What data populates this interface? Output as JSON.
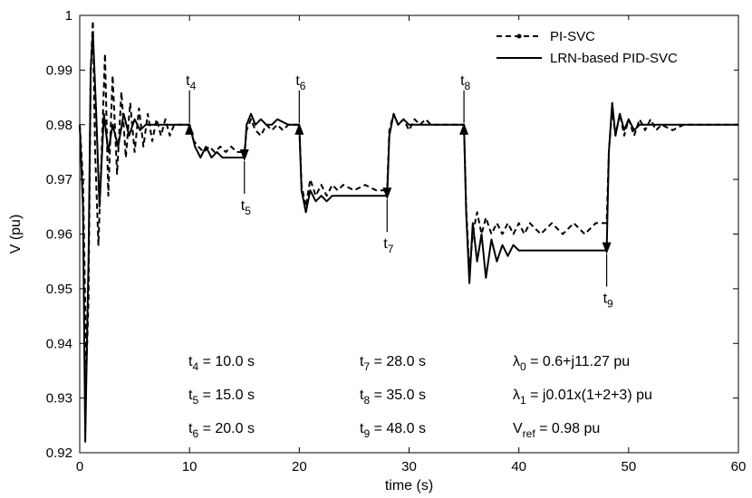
{
  "chart_data": {
    "type": "line",
    "xlabel": "time (s)",
    "ylabel": "V (pu)",
    "xlim": [
      0,
      60
    ],
    "ylim": [
      0.92,
      1.0
    ],
    "x_ticks": [
      "0",
      "10",
      "20",
      "30",
      "40",
      "50",
      "60"
    ],
    "y_ticks": [
      "0.92",
      "0.93",
      "0.94",
      "0.95",
      "0.96",
      "0.97",
      "0.98",
      "0.99",
      "1"
    ],
    "grid": false,
    "legend_position": "top-right",
    "series": [
      {
        "name": "PI-SVC",
        "style": "dashed",
        "x": [
          0,
          0.3,
          0.6,
          0.8,
          1.0,
          1.2,
          1.4,
          1.7,
          2.0,
          2.3,
          2.6,
          3.0,
          3.4,
          3.8,
          4.2,
          4.6,
          5.0,
          5.4,
          5.8,
          6.2,
          6.6,
          7.0,
          7.4,
          7.8,
          8.2,
          8.6,
          9.0,
          9.5,
          10.0,
          10.4,
          10.8,
          11.3,
          11.8,
          12.3,
          12.8,
          13.3,
          13.8,
          14.3,
          15.0,
          15.2,
          15.6,
          16.0,
          16.5,
          17.0,
          17.5,
          18.0,
          18.5,
          19.0,
          19.5,
          20.0,
          20.2,
          20.6,
          21.0,
          21.5,
          22.0,
          22.5,
          23.0,
          23.5,
          24.0,
          25.0,
          26.0,
          27.0,
          28.0,
          28.2,
          28.6,
          29.0,
          29.5,
          30.0,
          30.5,
          31.0,
          31.5,
          32.0,
          33.0,
          34.0,
          35.0,
          35.2,
          35.5,
          35.8,
          36.2,
          36.6,
          37.0,
          37.5,
          38.0,
          38.5,
          39.0,
          39.5,
          40.0,
          40.5,
          41.0,
          42.0,
          43.0,
          44.0,
          45.0,
          46.0,
          47.0,
          48.0,
          48.2,
          48.5,
          48.8,
          49.2,
          49.6,
          50.0,
          50.5,
          51.0,
          51.5,
          52.0,
          52.5,
          53.0,
          54.0,
          55.0,
          56.0,
          57.0,
          58.0,
          60.0
        ],
        "y": [
          0.98,
          0.97,
          0.935,
          0.948,
          0.99,
          0.999,
          0.975,
          0.958,
          0.975,
          0.993,
          0.967,
          0.989,
          0.971,
          0.986,
          0.974,
          0.984,
          0.975,
          0.983,
          0.976,
          0.982,
          0.977,
          0.981,
          0.978,
          0.981,
          0.978,
          0.98,
          0.98,
          0.98,
          0.98,
          0.977,
          0.976,
          0.975,
          0.976,
          0.975,
          0.976,
          0.975,
          0.976,
          0.975,
          0.975,
          0.979,
          0.981,
          0.979,
          0.978,
          0.98,
          0.979,
          0.98,
          0.979,
          0.98,
          0.98,
          0.98,
          0.969,
          0.965,
          0.97,
          0.967,
          0.969,
          0.967,
          0.969,
          0.968,
          0.969,
          0.968,
          0.969,
          0.968,
          0.968,
          0.979,
          0.982,
          0.98,
          0.981,
          0.979,
          0.981,
          0.98,
          0.981,
          0.98,
          0.98,
          0.98,
          0.98,
          0.965,
          0.953,
          0.96,
          0.964,
          0.96,
          0.963,
          0.96,
          0.962,
          0.96,
          0.962,
          0.96,
          0.962,
          0.96,
          0.962,
          0.96,
          0.962,
          0.96,
          0.962,
          0.96,
          0.962,
          0.962,
          0.975,
          0.983,
          0.978,
          0.982,
          0.978,
          0.981,
          0.978,
          0.981,
          0.979,
          0.981,
          0.979,
          0.98,
          0.979,
          0.98,
          0.98,
          0.98,
          0.98,
          0.98
        ]
      },
      {
        "name": "LRN-based PID-SVC",
        "style": "solid",
        "x": [
          0,
          0.3,
          0.5,
          0.7,
          0.8,
          1.0,
          1.2,
          1.5,
          1.8,
          2.2,
          2.6,
          3.0,
          3.5,
          4.0,
          4.5,
          5.0,
          5.5,
          6.0,
          7.0,
          8.0,
          9.0,
          10.0,
          10.5,
          11.0,
          11.5,
          12.0,
          12.5,
          13.0,
          14.0,
          15.0,
          15.2,
          15.6,
          16.0,
          16.5,
          17.0,
          17.5,
          18.0,
          19.0,
          20.0,
          20.2,
          20.6,
          21.0,
          21.5,
          22.0,
          22.5,
          23.0,
          24.0,
          25.0,
          26.0,
          27.0,
          28.0,
          28.2,
          28.6,
          29.0,
          29.5,
          30.0,
          30.5,
          31.0,
          32.0,
          33.0,
          34.0,
          35.0,
          35.2,
          35.5,
          35.8,
          36.2,
          36.6,
          37.0,
          37.5,
          38.0,
          38.5,
          39.0,
          39.5,
          40.0,
          41.0,
          42.0,
          43.0,
          44.0,
          45.0,
          46.0,
          47.0,
          48.0,
          48.2,
          48.5,
          48.8,
          49.2,
          49.6,
          50.0,
          50.5,
          51.0,
          52.0,
          53.0,
          54.0,
          56.0,
          58.0,
          60.0
        ],
        "y": [
          0.98,
          0.965,
          0.922,
          0.945,
          0.955,
          0.99,
          0.997,
          0.982,
          0.965,
          0.982,
          0.975,
          0.98,
          0.976,
          0.982,
          0.978,
          0.981,
          0.979,
          0.98,
          0.98,
          0.98,
          0.98,
          0.98,
          0.976,
          0.974,
          0.976,
          0.974,
          0.975,
          0.974,
          0.974,
          0.974,
          0.98,
          0.982,
          0.98,
          0.981,
          0.98,
          0.98,
          0.981,
          0.98,
          0.98,
          0.968,
          0.964,
          0.968,
          0.966,
          0.967,
          0.966,
          0.967,
          0.967,
          0.967,
          0.967,
          0.967,
          0.967,
          0.978,
          0.982,
          0.98,
          0.981,
          0.98,
          0.98,
          0.98,
          0.98,
          0.98,
          0.98,
          0.98,
          0.964,
          0.951,
          0.962,
          0.955,
          0.96,
          0.952,
          0.959,
          0.955,
          0.958,
          0.956,
          0.958,
          0.957,
          0.957,
          0.957,
          0.957,
          0.957,
          0.957,
          0.957,
          0.957,
          0.957,
          0.975,
          0.984,
          0.978,
          0.982,
          0.979,
          0.981,
          0.979,
          0.98,
          0.98,
          0.98,
          0.98,
          0.98,
          0.98,
          0.98
        ]
      }
    ],
    "markers": [
      {
        "main": "t",
        "sub": "4",
        "time": 10.0,
        "value": 0.98,
        "dir": "down"
      },
      {
        "main": "t",
        "sub": "5",
        "time": 15.0,
        "value": 0.974,
        "dir": "up"
      },
      {
        "main": "t",
        "sub": "6",
        "time": 20.0,
        "value": 0.98,
        "dir": "down"
      },
      {
        "main": "t",
        "sub": "7",
        "time": 28.0,
        "value": 0.967,
        "dir": "up"
      },
      {
        "main": "t",
        "sub": "8",
        "time": 35.0,
        "value": 0.98,
        "dir": "down"
      },
      {
        "main": "t",
        "sub": "9",
        "time": 48.0,
        "value": 0.957,
        "dir": "up"
      }
    ],
    "annotations": [
      {
        "main": "t",
        "sub": "4",
        "rest": " = 10.0 s"
      },
      {
        "main": "t",
        "sub": "5",
        "rest": " = 15.0 s"
      },
      {
        "main": "t",
        "sub": "6",
        "rest": " = 20.0 s"
      },
      {
        "main": "t",
        "sub": "7",
        "rest": " = 28.0 s"
      },
      {
        "main": "t",
        "sub": "8",
        "rest": " = 35.0 s"
      },
      {
        "main": "t",
        "sub": "9",
        "rest": " = 48.0 s"
      },
      {
        "main": "λ",
        "sub": "0",
        "rest": " = 0.6+j11.27 pu"
      },
      {
        "main": "λ",
        "sub": "1",
        "rest": " = j0.01x(1+2+3) pu"
      },
      {
        "main": "V",
        "sub": "ref",
        "rest": " = 0.98 pu"
      }
    ]
  }
}
